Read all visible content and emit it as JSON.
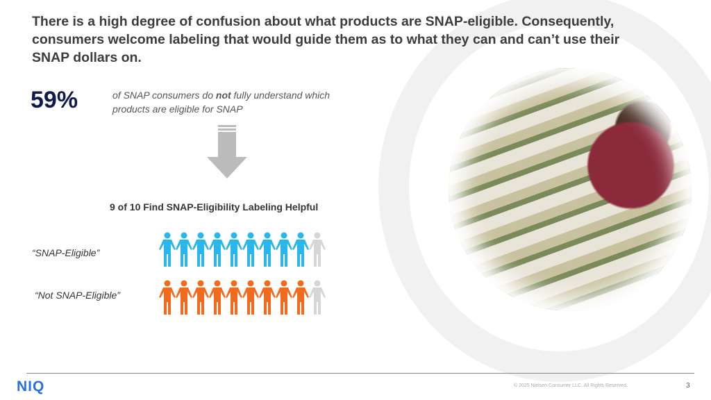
{
  "title": "There is a high degree of confusion about what products are SNAP-eligible. Consequently, consumers welcome labeling that would guide them as to what they can and can’t use their SNAP dollars on.",
  "stat": {
    "value": "59%",
    "desc_pre": "of SNAP consumers do ",
    "desc_bold": "not",
    "desc_post": " fully understand which products are eligible for SNAP"
  },
  "subhead": "9 of 10 Find SNAP-Eligibility Labeling Helpful",
  "rows": [
    {
      "label": "“SNAP-Eligible”",
      "filled": 9,
      "total": 10,
      "color": "#29b6ea"
    },
    {
      "label": "“Not SNAP-Eligible”",
      "filled": 9,
      "total": 10,
      "color": "#f26a1b"
    }
  ],
  "empty_color": "#d6d6d6",
  "footer": {
    "logo": "NIQ",
    "copyright": "© 2025 Nielsen Consumer LLC. All Rights Reserved.",
    "page": "3"
  }
}
